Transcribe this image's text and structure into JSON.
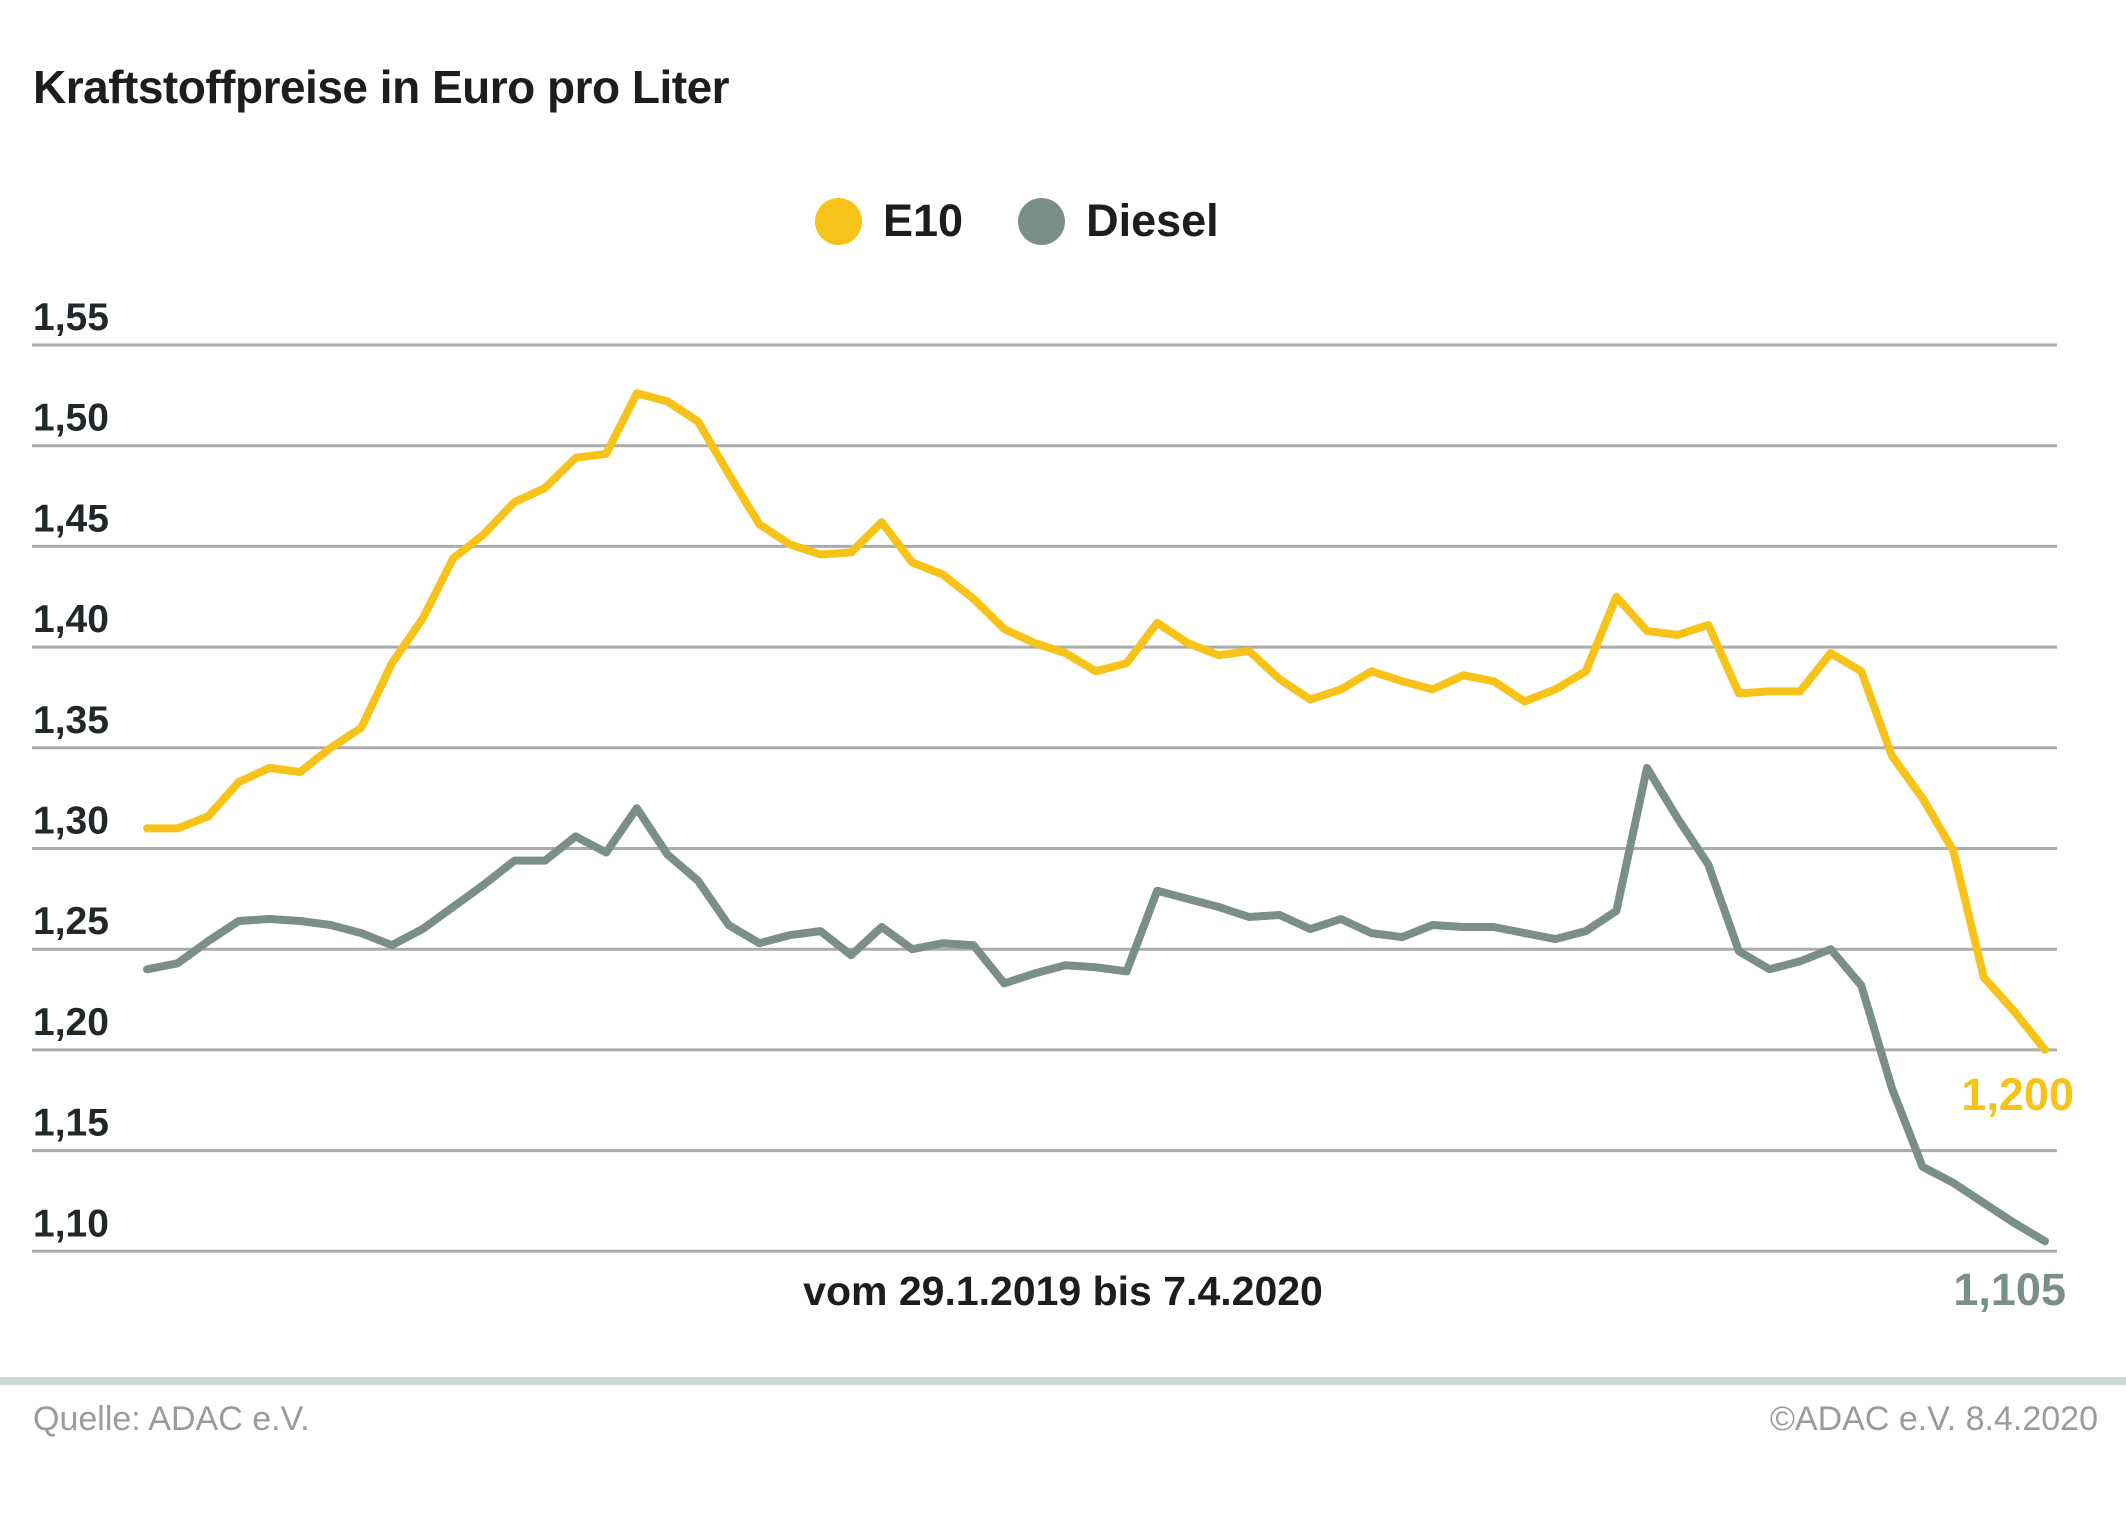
{
  "title": "Kraftstoffpreise in Euro pro Liter",
  "legend": [
    {
      "label": "E10",
      "color": "#f8c318"
    },
    {
      "label": "Diesel",
      "color": "#7b8f89"
    }
  ],
  "colors": {
    "e10": "#f8c318",
    "diesel": "#7b8f89",
    "text_dark": "#1d1d1b",
    "gridline": "#ababab",
    "footer_text": "#9b9b9b",
    "divider": "#cdd8d4"
  },
  "chart_data": {
    "type": "line",
    "title": "Kraftstoffpreise in Euro pro Liter",
    "x_caption": "vom 29.1.2019 bis 7.4.2020",
    "x_range": {
      "from": "29.1.2019",
      "to": "7.4.2020"
    },
    "ylabel": "Euro pro Liter",
    "ylim": [
      1.1,
      1.55
    ],
    "y_ticks": [
      "1,55",
      "1,50",
      "1,45",
      "1,40",
      "1,35",
      "1,30",
      "1,25",
      "1,20",
      "1,15",
      "1,10"
    ],
    "grid": "horizontal",
    "legend_position": "top-center",
    "series": [
      {
        "name": "E10",
        "color": "#f8c318",
        "end_label": "1,200",
        "values": [
          1.31,
          1.31,
          1.316,
          1.333,
          1.34,
          1.338,
          1.35,
          1.36,
          1.392,
          1.414,
          1.444,
          1.456,
          1.472,
          1.479,
          1.494,
          1.496,
          1.526,
          1.522,
          1.512,
          1.486,
          1.461,
          1.451,
          1.446,
          1.447,
          1.462,
          1.442,
          1.436,
          1.424,
          1.409,
          1.402,
          1.397,
          1.388,
          1.392,
          1.412,
          1.402,
          1.396,
          1.398,
          1.384,
          1.374,
          1.379,
          1.388,
          1.383,
          1.379,
          1.386,
          1.383,
          1.373,
          1.379,
          1.388,
          1.425,
          1.408,
          1.406,
          1.411,
          1.377,
          1.378,
          1.378,
          1.397,
          1.388,
          1.346,
          1.325,
          1.299,
          1.236,
          1.219,
          1.2
        ]
      },
      {
        "name": "Diesel",
        "color": "#7b8f89",
        "end_label": "1,105",
        "values": [
          1.24,
          1.243,
          1.254,
          1.264,
          1.265,
          1.264,
          1.262,
          1.258,
          1.252,
          1.26,
          1.271,
          1.282,
          1.294,
          1.294,
          1.306,
          1.298,
          1.32,
          1.297,
          1.284,
          1.262,
          1.253,
          1.257,
          1.259,
          1.247,
          1.261,
          1.25,
          1.253,
          1.252,
          1.233,
          1.238,
          1.242,
          1.241,
          1.239,
          1.279,
          1.275,
          1.271,
          1.266,
          1.267,
          1.26,
          1.265,
          1.258,
          1.256,
          1.262,
          1.261,
          1.261,
          1.258,
          1.255,
          1.259,
          1.269,
          1.34,
          1.315,
          1.292,
          1.249,
          1.24,
          1.244,
          1.25,
          1.232,
          1.181,
          1.142,
          1.134,
          1.124,
          1.114,
          1.105
        ]
      }
    ]
  },
  "footer": {
    "source": "Quelle: ADAC e.V.",
    "copyright": "©ADAC e.V. 8.4.2020"
  }
}
